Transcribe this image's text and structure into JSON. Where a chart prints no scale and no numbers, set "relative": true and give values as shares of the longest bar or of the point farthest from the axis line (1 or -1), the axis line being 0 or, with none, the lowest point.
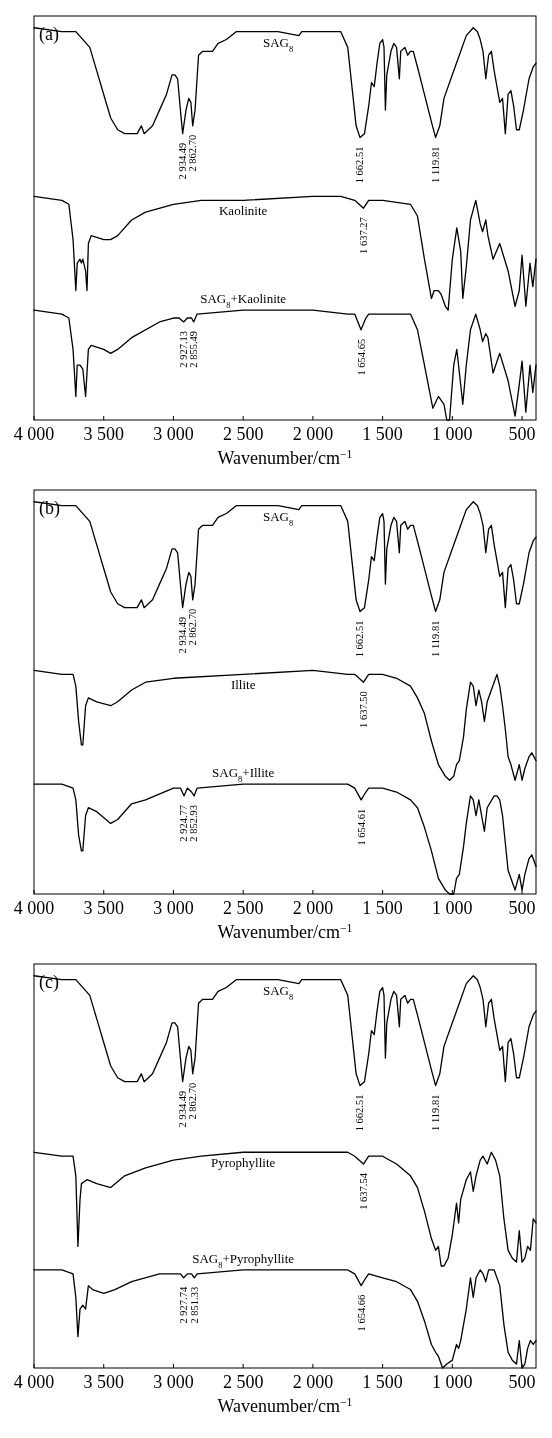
{
  "chart_data": [
    {
      "type": "line",
      "relative": true,
      "xlabel": "Wavenumber/cm$^{−1}$",
      "xlim": [
        4000,
        400
      ],
      "xticks": [
        {
          "value": 4000,
          "label": "4 000"
        },
        {
          "value": 3500,
          "label": "3 500"
        },
        {
          "value": 3000,
          "label": "3 000"
        },
        {
          "value": 2500,
          "label": "2 500"
        },
        {
          "value": 2000,
          "label": "2 000"
        },
        {
          "value": 1500,
          "label": "1 500"
        },
        {
          "value": 1000,
          "label": "1 000"
        },
        {
          "value": 500,
          "label": "500"
        }
      ],
      "annotations": [
        "(a)",
        {
          "text": "2 934.49",
          "x": 2934.49,
          "y": 0.73
        },
        {
          "text": "2 862.70",
          "x": 2862.7,
          "y": 0.75
        },
        {
          "text": "1 662.51",
          "x": 1662.51,
          "y": 0.72
        },
        {
          "text": "1 119.81",
          "x": 1119.81,
          "y": 0.72
        },
        {
          "text": "1 637.27",
          "x": 1637.27,
          "y": 0.54
        },
        {
          "text": "2 927.13",
          "x": 2927.13,
          "y": 0.25
        },
        {
          "text": "2 855.49",
          "x": 2855.49,
          "y": 0.25
        },
        {
          "text": "1 654.65",
          "x": 1654.65,
          "y": 0.23
        }
      ],
      "series": [
        {
          "name": "SAG$_{8}$",
          "color": "#000000",
          "x": [
            4000,
            3800,
            3700,
            3600,
            3550,
            3500,
            3450,
            3400,
            3350,
            3300,
            3260,
            3230,
            3210,
            3180,
            3150,
            3100,
            3050,
            3010,
            2990,
            2970,
            2950,
            2934,
            2910,
            2890,
            2875,
            2862,
            2845,
            2820,
            2790,
            2720,
            2680,
            2620,
            2550,
            2450,
            2350,
            2250,
            2100,
            2080,
            2000,
            1900,
            1800,
            1750,
            1720,
            1690,
            1662,
            1630,
            1600,
            1580,
            1560,
            1540,
            1520,
            1500,
            1490,
            1480,
            1470,
            1440,
            1420,
            1400,
            1390,
            1380,
            1370,
            1340,
            1320,
            1300,
            1280,
            1250,
            1200,
            1150,
            1120,
            1090,
            1060,
            1000,
            950,
            900,
            850,
            820,
            800,
            780,
            760,
            740,
            720,
            700,
            660,
            640,
            620,
            600,
            580,
            560,
            540,
            520,
            490,
            450,
            420,
            400
          ],
          "values": [
            1.0,
            0.99,
            0.99,
            0.95,
            0.89,
            0.83,
            0.77,
            0.74,
            0.73,
            0.73,
            0.73,
            0.75,
            0.73,
            0.74,
            0.75,
            0.79,
            0.83,
            0.88,
            0.88,
            0.87,
            0.79,
            0.73,
            0.79,
            0.82,
            0.81,
            0.75,
            0.79,
            0.93,
            0.94,
            0.94,
            0.96,
            0.97,
            0.99,
            0.99,
            0.99,
            0.99,
            0.98,
            0.99,
            0.99,
            0.99,
            0.99,
            0.95,
            0.85,
            0.75,
            0.72,
            0.73,
            0.8,
            0.86,
            0.85,
            0.91,
            0.96,
            0.97,
            0.95,
            0.79,
            0.88,
            0.94,
            0.96,
            0.95,
            0.91,
            0.87,
            0.94,
            0.95,
            0.93,
            0.94,
            0.94,
            0.9,
            0.83,
            0.76,
            0.72,
            0.75,
            0.82,
            0.88,
            0.93,
            0.98,
            1.0,
            0.99,
            0.97,
            0.94,
            0.87,
            0.93,
            0.94,
            0.89,
            0.81,
            0.82,
            0.73,
            0.83,
            0.84,
            0.8,
            0.74,
            0.74,
            0.79,
            0.87,
            0.9,
            0.91
          ]
        },
        {
          "name": "Kaolinite",
          "color": "#000000",
          "x": [
            4000,
            3800,
            3750,
            3720,
            3700,
            3690,
            3670,
            3660,
            3650,
            3630,
            3620,
            3610,
            3590,
            3500,
            3450,
            3400,
            3300,
            3200,
            3000,
            2800,
            2500,
            2000,
            1800,
            1700,
            1637,
            1600,
            1500,
            1300,
            1250,
            1200,
            1150,
            1130,
            1100,
            1080,
            1050,
            1030,
            1000,
            968,
            940,
            925,
            900,
            870,
            832,
            800,
            783,
            760,
            745,
            708,
            660,
            600,
            550,
            520,
            500,
            473,
            443,
            423,
            400
          ],
          "values": [
            0.57,
            0.56,
            0.55,
            0.46,
            0.33,
            0.4,
            0.41,
            0.4,
            0.41,
            0.38,
            0.33,
            0.45,
            0.47,
            0.46,
            0.46,
            0.47,
            0.51,
            0.53,
            0.55,
            0.56,
            0.56,
            0.57,
            0.57,
            0.56,
            0.54,
            0.56,
            0.56,
            0.55,
            0.52,
            0.41,
            0.31,
            0.33,
            0.33,
            0.32,
            0.29,
            0.28,
            0.41,
            0.49,
            0.43,
            0.31,
            0.39,
            0.51,
            0.56,
            0.5,
            0.48,
            0.51,
            0.47,
            0.41,
            0.45,
            0.38,
            0.29,
            0.33,
            0.42,
            0.29,
            0.4,
            0.34,
            0.41
          ]
        },
        {
          "name": "SAG$_{8}$+Kaolinite",
          "color": "#000000",
          "x": [
            4000,
            3800,
            3750,
            3720,
            3700,
            3690,
            3670,
            3650,
            3630,
            3610,
            3590,
            3500,
            3450,
            3400,
            3300,
            3100,
            3000,
            2960,
            2927,
            2900,
            2870,
            2855,
            2830,
            2500,
            2000,
            1750,
            1700,
            1655,
            1620,
            1600,
            1500,
            1300,
            1250,
            1200,
            1140,
            1100,
            1060,
            1040,
            1020,
            990,
            968,
            940,
            925,
            900,
            870,
            832,
            800,
            783,
            760,
            745,
            708,
            660,
            600,
            550,
            520,
            500,
            473,
            443,
            423,
            400
          ],
          "values": [
            0.28,
            0.27,
            0.26,
            0.18,
            0.06,
            0.14,
            0.14,
            0.13,
            0.06,
            0.18,
            0.19,
            0.18,
            0.17,
            0.18,
            0.21,
            0.25,
            0.26,
            0.26,
            0.25,
            0.26,
            0.26,
            0.25,
            0.27,
            0.28,
            0.28,
            0.27,
            0.27,
            0.23,
            0.26,
            0.27,
            0.27,
            0.27,
            0.23,
            0.14,
            0.03,
            0.06,
            0.04,
            0.0,
            0.0,
            0.14,
            0.18,
            0.09,
            0.04,
            0.14,
            0.23,
            0.27,
            0.23,
            0.2,
            0.22,
            0.21,
            0.12,
            0.17,
            0.1,
            0.01,
            0.09,
            0.15,
            0.02,
            0.14,
            0.07,
            0.14
          ]
        }
      ]
    },
    {
      "type": "line",
      "relative": true,
      "xlabel": "Wavenumber/cm$^{−1}$",
      "xlim": [
        4000,
        400
      ],
      "xticks": [
        {
          "value": 4000,
          "label": "4 000"
        },
        {
          "value": 3500,
          "label": "3 500"
        },
        {
          "value": 3000,
          "label": "3 000"
        },
        {
          "value": 2500,
          "label": "2 500"
        },
        {
          "value": 2000,
          "label": "2 000"
        },
        {
          "value": 1500,
          "label": "1 500"
        },
        {
          "value": 1000,
          "label": "1 000"
        },
        {
          "value": 500,
          "label": "500"
        }
      ],
      "annotations": [
        "(b)",
        {
          "text": "2 934.49",
          "x": 2934.49,
          "y": 0.73
        },
        {
          "text": "2 862.70",
          "x": 2862.7,
          "y": 0.75
        },
        {
          "text": "1 662.51",
          "x": 1662.51,
          "y": 0.72
        },
        {
          "text": "1 119.81",
          "x": 1119.81,
          "y": 0.72
        },
        {
          "text": "1 637.50",
          "x": 1637.5,
          "y": 0.54
        },
        {
          "text": "2 924.77",
          "x": 2924.77,
          "y": 0.25
        },
        {
          "text": "2 852.93",
          "x": 2852.93,
          "y": 0.25
        },
        {
          "text": "1 654.61",
          "x": 1654.61,
          "y": 0.24
        }
      ],
      "series": [
        {
          "name": "SAG$_{8}$",
          "color": "#000000",
          "x": [
            4000,
            3800,
            3700,
            3600,
            3550,
            3500,
            3450,
            3400,
            3350,
            3300,
            3260,
            3230,
            3210,
            3180,
            3150,
            3100,
            3050,
            3010,
            2990,
            2970,
            2950,
            2934,
            2910,
            2890,
            2875,
            2862,
            2845,
            2820,
            2790,
            2720,
            2680,
            2620,
            2550,
            2450,
            2350,
            2250,
            2100,
            2080,
            2000,
            1900,
            1800,
            1750,
            1720,
            1690,
            1662,
            1630,
            1600,
            1580,
            1560,
            1540,
            1520,
            1500,
            1490,
            1480,
            1470,
            1440,
            1420,
            1400,
            1390,
            1380,
            1370,
            1340,
            1320,
            1300,
            1280,
            1250,
            1200,
            1150,
            1120,
            1090,
            1060,
            1000,
            950,
            900,
            850,
            820,
            800,
            780,
            760,
            740,
            720,
            700,
            660,
            640,
            620,
            600,
            580,
            560,
            540,
            520,
            490,
            450,
            420,
            400
          ],
          "values": [
            1.0,
            0.99,
            0.99,
            0.95,
            0.89,
            0.83,
            0.77,
            0.74,
            0.73,
            0.73,
            0.73,
            0.75,
            0.73,
            0.74,
            0.75,
            0.79,
            0.83,
            0.88,
            0.88,
            0.87,
            0.79,
            0.73,
            0.79,
            0.82,
            0.81,
            0.75,
            0.79,
            0.93,
            0.94,
            0.94,
            0.96,
            0.97,
            0.99,
            0.99,
            0.99,
            0.99,
            0.98,
            0.99,
            0.99,
            0.99,
            0.99,
            0.95,
            0.85,
            0.75,
            0.72,
            0.73,
            0.8,
            0.86,
            0.85,
            0.91,
            0.96,
            0.97,
            0.95,
            0.79,
            0.88,
            0.94,
            0.96,
            0.95,
            0.91,
            0.87,
            0.94,
            0.95,
            0.93,
            0.94,
            0.94,
            0.9,
            0.83,
            0.76,
            0.72,
            0.75,
            0.82,
            0.88,
            0.93,
            0.98,
            1.0,
            0.99,
            0.97,
            0.94,
            0.87,
            0.93,
            0.94,
            0.89,
            0.81,
            0.82,
            0.73,
            0.83,
            0.84,
            0.8,
            0.74,
            0.74,
            0.79,
            0.87,
            0.9,
            0.91
          ]
        },
        {
          "name": "Illite",
          "color": "#000000",
          "x": [
            4000,
            3800,
            3720,
            3700,
            3680,
            3660,
            3650,
            3630,
            3610,
            3550,
            3450,
            3400,
            3300,
            3200,
            3000,
            2500,
            2000,
            1750,
            1700,
            1637,
            1600,
            1500,
            1400,
            1300,
            1250,
            1200,
            1150,
            1100,
            1050,
            1020,
            990,
            970,
            950,
            920,
            900,
            870,
            850,
            830,
            810,
            790,
            770,
            750,
            700,
            680,
            660,
            640,
            620,
            600,
            580,
            550,
            520,
            500,
            480,
            450,
            430,
            400
          ],
          "values": [
            0.57,
            0.56,
            0.56,
            0.53,
            0.44,
            0.38,
            0.38,
            0.48,
            0.5,
            0.49,
            0.48,
            0.49,
            0.52,
            0.54,
            0.55,
            0.56,
            0.57,
            0.56,
            0.56,
            0.54,
            0.56,
            0.56,
            0.55,
            0.53,
            0.5,
            0.46,
            0.39,
            0.33,
            0.3,
            0.29,
            0.3,
            0.33,
            0.34,
            0.4,
            0.47,
            0.54,
            0.53,
            0.48,
            0.52,
            0.49,
            0.44,
            0.49,
            0.54,
            0.56,
            0.53,
            0.48,
            0.42,
            0.35,
            0.33,
            0.29,
            0.33,
            0.29,
            0.32,
            0.35,
            0.36,
            0.34
          ]
        },
        {
          "name": "SAG$_{8}$+Illite",
          "color": "#000000",
          "x": [
            4000,
            3800,
            3720,
            3700,
            3680,
            3660,
            3650,
            3630,
            3610,
            3550,
            3450,
            3400,
            3300,
            3200,
            3000,
            2950,
            2924,
            2900,
            2870,
            2852,
            2830,
            2500,
            2000,
            1750,
            1700,
            1654,
            1620,
            1600,
            1500,
            1400,
            1300,
            1250,
            1200,
            1150,
            1100,
            1050,
            1020,
            990,
            970,
            950,
            920,
            900,
            870,
            850,
            830,
            810,
            790,
            770,
            750,
            700,
            680,
            660,
            640,
            620,
            600,
            580,
            550,
            520,
            500,
            480,
            450,
            430,
            400
          ],
          "values": [
            0.28,
            0.28,
            0.27,
            0.24,
            0.15,
            0.11,
            0.11,
            0.2,
            0.22,
            0.21,
            0.18,
            0.19,
            0.23,
            0.24,
            0.27,
            0.27,
            0.25,
            0.27,
            0.26,
            0.25,
            0.27,
            0.28,
            0.28,
            0.28,
            0.27,
            0.24,
            0.26,
            0.27,
            0.27,
            0.26,
            0.24,
            0.22,
            0.17,
            0.11,
            0.04,
            0.01,
            0.0,
            0.0,
            0.04,
            0.05,
            0.12,
            0.18,
            0.25,
            0.24,
            0.2,
            0.24,
            0.2,
            0.16,
            0.22,
            0.25,
            0.25,
            0.24,
            0.2,
            0.13,
            0.06,
            0.04,
            0.01,
            0.05,
            0.01,
            0.05,
            0.09,
            0.1,
            0.07
          ]
        }
      ]
    },
    {
      "type": "line",
      "relative": true,
      "xlabel": "Wavenumber/cm$^{−1}$",
      "xlim": [
        4000,
        400
      ],
      "xticks": [
        {
          "value": 4000,
          "label": "4 000"
        },
        {
          "value": 3500,
          "label": "3 500"
        },
        {
          "value": 3000,
          "label": "3 000"
        },
        {
          "value": 2500,
          "label": "2 500"
        },
        {
          "value": 2000,
          "label": "2 000"
        },
        {
          "value": 1500,
          "label": "1 500"
        },
        {
          "value": 1000,
          "label": "1 000"
        },
        {
          "value": 500,
          "label": "500"
        }
      ],
      "annotations": [
        "(c)",
        {
          "text": "2 934.49",
          "x": 2934.49,
          "y": 0.73
        },
        {
          "text": "2 862.70",
          "x": 2862.7,
          "y": 0.75
        },
        {
          "text": "1 662.51",
          "x": 1662.51,
          "y": 0.72
        },
        {
          "text": "1 119.81",
          "x": 1119.81,
          "y": 0.72
        },
        {
          "text": "1 637.54",
          "x": 1637.54,
          "y": 0.52
        },
        {
          "text": "2 927.74",
          "x": 2927.74,
          "y": 0.23
        },
        {
          "text": "2 851.33",
          "x": 2851.33,
          "y": 0.23
        },
        {
          "text": "1 654.66",
          "x": 1654.66,
          "y": 0.21
        }
      ],
      "series": [
        {
          "name": "SAG$_{8}$",
          "color": "#000000",
          "x": [
            4000,
            3800,
            3700,
            3600,
            3550,
            3500,
            3450,
            3400,
            3350,
            3300,
            3260,
            3230,
            3210,
            3180,
            3150,
            3100,
            3050,
            3010,
            2990,
            2970,
            2950,
            2934,
            2910,
            2890,
            2875,
            2862,
            2845,
            2820,
            2790,
            2720,
            2680,
            2620,
            2550,
            2450,
            2350,
            2250,
            2100,
            2080,
            2000,
            1900,
            1800,
            1750,
            1720,
            1690,
            1662,
            1630,
            1600,
            1580,
            1560,
            1540,
            1520,
            1500,
            1490,
            1480,
            1470,
            1440,
            1420,
            1400,
            1390,
            1380,
            1370,
            1340,
            1320,
            1300,
            1280,
            1250,
            1200,
            1150,
            1120,
            1090,
            1060,
            1000,
            950,
            900,
            850,
            820,
            800,
            780,
            760,
            740,
            720,
            700,
            660,
            640,
            620,
            600,
            580,
            560,
            540,
            520,
            490,
            450,
            420,
            400
          ],
          "values": [
            1.0,
            0.99,
            0.99,
            0.95,
            0.89,
            0.83,
            0.77,
            0.74,
            0.73,
            0.73,
            0.73,
            0.75,
            0.73,
            0.74,
            0.75,
            0.79,
            0.83,
            0.88,
            0.88,
            0.87,
            0.79,
            0.73,
            0.79,
            0.82,
            0.81,
            0.75,
            0.79,
            0.93,
            0.94,
            0.94,
            0.96,
            0.97,
            0.99,
            0.99,
            0.99,
            0.99,
            0.98,
            0.99,
            0.99,
            0.99,
            0.99,
            0.95,
            0.85,
            0.75,
            0.72,
            0.73,
            0.8,
            0.86,
            0.85,
            0.91,
            0.96,
            0.97,
            0.95,
            0.79,
            0.88,
            0.94,
            0.96,
            0.95,
            0.91,
            0.87,
            0.94,
            0.95,
            0.93,
            0.94,
            0.94,
            0.9,
            0.83,
            0.76,
            0.72,
            0.75,
            0.82,
            0.88,
            0.93,
            0.98,
            1.0,
            0.99,
            0.97,
            0.94,
            0.87,
            0.93,
            0.94,
            0.89,
            0.81,
            0.82,
            0.73,
            0.83,
            0.84,
            0.8,
            0.74,
            0.74,
            0.79,
            0.87,
            0.9,
            0.91
          ]
        },
        {
          "name": "Pyrophyllite",
          "color": "#000000",
          "x": [
            4000,
            3800,
            3720,
            3700,
            3685,
            3670,
            3660,
            3620,
            3550,
            3450,
            3350,
            3200,
            3000,
            2800,
            2500,
            2000,
            1900,
            1750,
            1700,
            1637,
            1600,
            1500,
            1400,
            1300,
            1250,
            1200,
            1150,
            1120,
            1100,
            1080,
            1060,
            1030,
            1000,
            970,
            955,
            940,
            900,
            870,
            850,
            830,
            800,
            780,
            750,
            720,
            690,
            660,
            630,
            600,
            570,
            540,
            520,
            500,
            480,
            460,
            440,
            420,
            400
          ],
          "values": [
            0.55,
            0.54,
            0.54,
            0.49,
            0.31,
            0.43,
            0.47,
            0.48,
            0.47,
            0.46,
            0.49,
            0.51,
            0.53,
            0.54,
            0.55,
            0.55,
            0.55,
            0.55,
            0.54,
            0.52,
            0.54,
            0.54,
            0.52,
            0.49,
            0.46,
            0.4,
            0.33,
            0.3,
            0.31,
            0.26,
            0.26,
            0.28,
            0.34,
            0.42,
            0.37,
            0.43,
            0.48,
            0.5,
            0.45,
            0.49,
            0.53,
            0.54,
            0.52,
            0.55,
            0.53,
            0.49,
            0.38,
            0.3,
            0.28,
            0.27,
            0.35,
            0.27,
            0.28,
            0.31,
            0.3,
            0.38,
            0.37
          ]
        },
        {
          "name": "SAG$_{8}$+Pyrophyllite",
          "color": "#000000",
          "x": [
            4000,
            3800,
            3720,
            3700,
            3685,
            3670,
            3650,
            3630,
            3610,
            3580,
            3500,
            3420,
            3300,
            3100,
            3000,
            2950,
            2927,
            2900,
            2870,
            2851,
            2830,
            2500,
            2000,
            1750,
            1700,
            1654,
            1620,
            1600,
            1500,
            1400,
            1300,
            1250,
            1200,
            1150,
            1120,
            1100,
            1070,
            1040,
            1000,
            970,
            955,
            940,
            900,
            870,
            850,
            830,
            800,
            780,
            760,
            740,
            700,
            660,
            630,
            600,
            570,
            540,
            520,
            500,
            480,
            460,
            440,
            420,
            400
          ],
          "values": [
            0.25,
            0.25,
            0.24,
            0.18,
            0.08,
            0.15,
            0.16,
            0.15,
            0.21,
            0.2,
            0.19,
            0.2,
            0.22,
            0.24,
            0.24,
            0.24,
            0.23,
            0.24,
            0.24,
            0.23,
            0.24,
            0.25,
            0.25,
            0.25,
            0.24,
            0.21,
            0.23,
            0.24,
            0.23,
            0.22,
            0.2,
            0.17,
            0.12,
            0.06,
            0.04,
            0.03,
            0.0,
            0.01,
            0.02,
            0.06,
            0.05,
            0.07,
            0.15,
            0.23,
            0.18,
            0.23,
            0.25,
            0.24,
            0.22,
            0.25,
            0.25,
            0.21,
            0.11,
            0.04,
            0.02,
            0.01,
            0.07,
            0.0,
            0.01,
            0.05,
            0.07,
            0.06,
            0.07
          ]
        }
      ]
    }
  ]
}
